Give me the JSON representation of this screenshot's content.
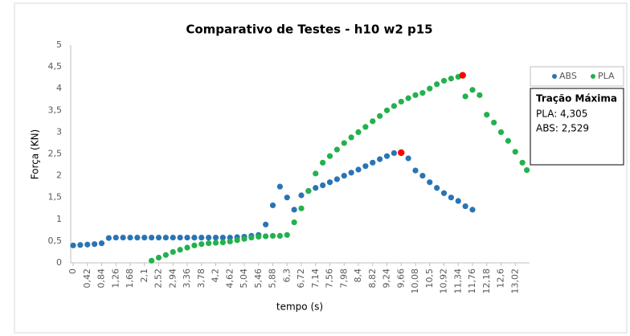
{
  "chart_data": {
    "type": "scatter",
    "title": "Comparativo de Testes - h10 w2 p15",
    "x_label": "tempo (s)",
    "y_label": "Força (KN)",
    "xlim": [
      0,
      13.44
    ],
    "ylim": [
      0,
      5
    ],
    "grid": false,
    "legend": "right",
    "yticks": [
      0,
      {
        "value": 0.5,
        "label": "0,5"
      },
      1,
      {
        "value": 1.5,
        "label": "1,5"
      },
      2,
      {
        "value": 2.5,
        "label": "2,5"
      },
      3,
      {
        "value": 3.5,
        "label": "3,5"
      },
      4,
      {
        "value": 4.5,
        "label": "4,5"
      },
      5
    ],
    "xticks": [
      0,
      {
        "value": 0.42,
        "label": "0,42"
      },
      {
        "value": 0.84,
        "label": "0,84"
      },
      {
        "value": 1.26,
        "label": "1,26"
      },
      {
        "value": 1.68,
        "label": "1,68"
      },
      {
        "value": 2.1,
        "label": "2,1"
      },
      {
        "value": 2.52,
        "label": "2,52"
      },
      {
        "value": 2.94,
        "label": "2,94"
      },
      {
        "value": 3.36,
        "label": "3,36"
      },
      {
        "value": 3.78,
        "label": "3,78"
      },
      {
        "value": 4.2,
        "label": "4,2"
      },
      {
        "value": 4.62,
        "label": "4,62"
      },
      {
        "value": 5.04,
        "label": "5,04"
      },
      {
        "value": 5.46,
        "label": "5,46"
      },
      {
        "value": 5.88,
        "label": "5,88"
      },
      {
        "value": 6.3,
        "label": "6,3"
      },
      {
        "value": 6.72,
        "label": "6,72"
      },
      {
        "value": 7.14,
        "label": "7,14"
      },
      {
        "value": 7.56,
        "label": "7,56"
      },
      {
        "value": 7.98,
        "label": "7,98"
      },
      {
        "value": 8.4,
        "label": "8,4"
      },
      {
        "value": 8.82,
        "label": "8,82"
      },
      {
        "value": 9.24,
        "label": "9,24"
      },
      {
        "value": 9.66,
        "label": "9,66"
      },
      {
        "value": 10.08,
        "label": "10,08"
      },
      {
        "value": 10.5,
        "label": "10,5"
      },
      {
        "value": 10.92,
        "label": "10,92"
      },
      {
        "value": 11.34,
        "label": "11,34"
      },
      {
        "value": 11.76,
        "label": "11,76"
      },
      {
        "value": 12.18,
        "label": "12,18"
      },
      {
        "value": 12.6,
        "label": "12,6"
      },
      {
        "value": 13.02,
        "label": "13,02"
      }
    ],
    "series": [
      {
        "name": "ABS",
        "color": "#2a74b4",
        "x": [
          0,
          0.21,
          0.42,
          0.63,
          0.84,
          1.05,
          1.26,
          1.47,
          1.68,
          1.89,
          2.1,
          2.31,
          2.52,
          2.73,
          2.94,
          3.15,
          3.36,
          3.57,
          3.78,
          3.99,
          4.2,
          4.41,
          4.62,
          4.83,
          5.04,
          5.25,
          5.46,
          5.67,
          5.88,
          6.09,
          6.3,
          6.51,
          6.72,
          6.93,
          7.14,
          7.35,
          7.56,
          7.77,
          7.98,
          8.19,
          8.4,
          8.61,
          8.82,
          9.03,
          9.24,
          9.45,
          9.66,
          9.87,
          10.08,
          10.29,
          10.5,
          10.71,
          10.92,
          11.13,
          11.34,
          11.55,
          11.76
        ],
        "values": [
          0.4,
          0.41,
          0.42,
          0.43,
          0.45,
          0.57,
          0.58,
          0.58,
          0.58,
          0.58,
          0.58,
          0.58,
          0.58,
          0.58,
          0.58,
          0.58,
          0.58,
          0.58,
          0.58,
          0.58,
          0.58,
          0.58,
          0.58,
          0.59,
          0.6,
          0.62,
          0.64,
          0.88,
          1.32,
          1.75,
          1.5,
          1.22,
          1.55,
          1.65,
          1.72,
          1.78,
          1.85,
          1.92,
          2.0,
          2.07,
          2.14,
          2.22,
          2.3,
          2.38,
          2.45,
          2.52,
          2.529,
          2.4,
          2.12,
          2.0,
          1.85,
          1.72,
          1.6,
          1.5,
          1.42,
          1.3,
          1.22
        ]
      },
      {
        "name": "PLA",
        "color": "#23b14d",
        "x": [
          2.31,
          2.52,
          2.73,
          2.94,
          3.15,
          3.36,
          3.57,
          3.78,
          3.99,
          4.2,
          4.41,
          4.62,
          4.83,
          5.04,
          5.25,
          5.46,
          5.67,
          5.88,
          6.09,
          6.3,
          6.51,
          6.72,
          6.93,
          7.14,
          7.35,
          7.56,
          7.77,
          7.98,
          8.19,
          8.4,
          8.61,
          8.82,
          9.03,
          9.24,
          9.45,
          9.66,
          9.87,
          10.08,
          10.29,
          10.5,
          10.71,
          10.92,
          11.13,
          11.34,
          11.55,
          11.76,
          11.97,
          12.18,
          12.39,
          12.6,
          12.81,
          13.02,
          13.23,
          13.36
        ],
        "values": [
          0.05,
          0.12,
          0.18,
          0.25,
          0.3,
          0.35,
          0.4,
          0.43,
          0.45,
          0.46,
          0.47,
          0.49,
          0.52,
          0.55,
          0.58,
          0.6,
          0.61,
          0.62,
          0.62,
          0.64,
          0.93,
          1.25,
          1.65,
          2.05,
          2.3,
          2.45,
          2.6,
          2.75,
          2.88,
          3.0,
          3.12,
          3.25,
          3.37,
          3.5,
          3.6,
          3.7,
          3.78,
          3.85,
          3.9,
          4.0,
          4.1,
          4.18,
          4.23,
          4.27,
          3.82,
          3.97,
          3.85,
          3.4,
          3.22,
          3.0,
          2.8,
          2.55,
          2.3,
          2.13
        ]
      }
    ],
    "highlight_points": {
      "color": "#ff0000",
      "x": [
        11.47,
        9.66
      ],
      "values": [
        4.305,
        2.529
      ]
    },
    "annotation": {
      "title": "Tração Máxima",
      "lines": [
        "PLA: 4,305",
        "ABS: 2,529"
      ]
    }
  }
}
